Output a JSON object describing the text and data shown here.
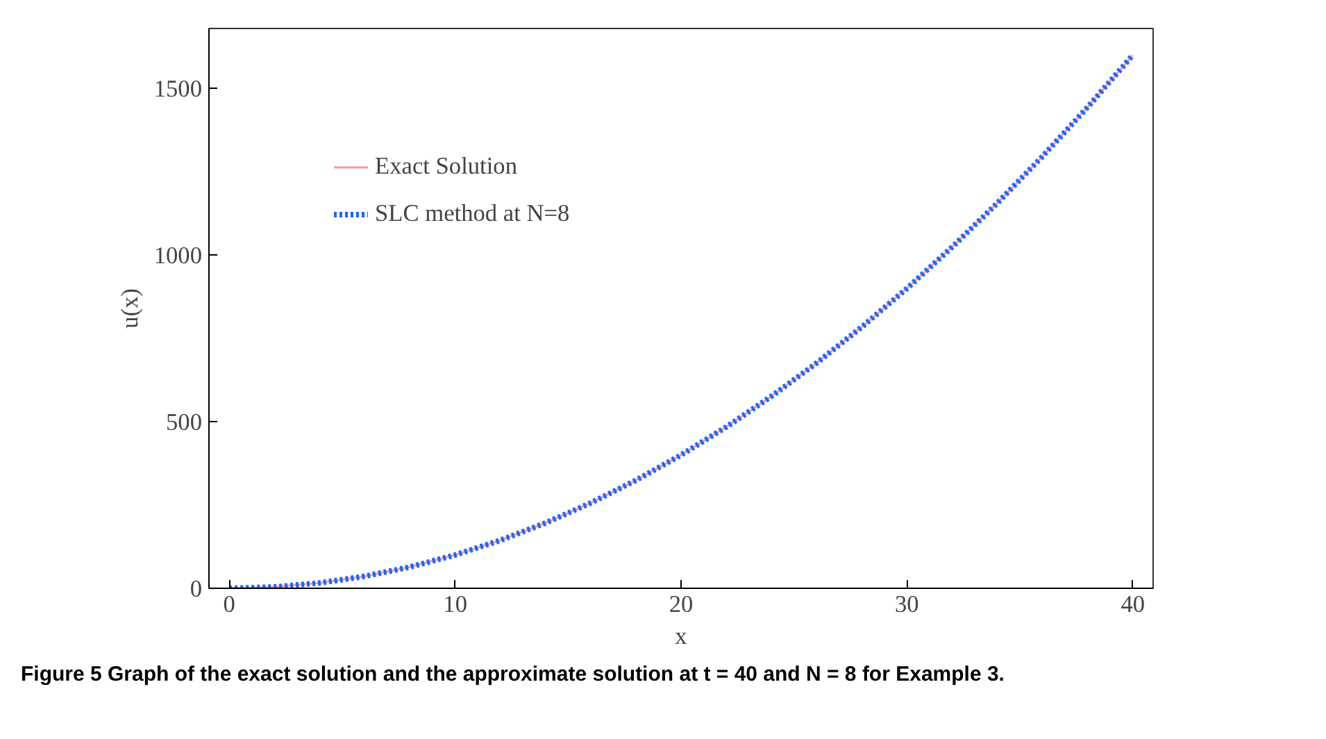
{
  "chart_data": {
    "type": "line",
    "xlabel": "x",
    "ylabel": "u(x)",
    "x": [
      0,
      2,
      4,
      6,
      8,
      10,
      12,
      14,
      16,
      18,
      20,
      22,
      24,
      26,
      28,
      30,
      32,
      34,
      36,
      38,
      40
    ],
    "series": [
      {
        "name": "Exact Solution",
        "color": "#ff9999",
        "line_style": "solid",
        "values": [
          0,
          4,
          16,
          36,
          64,
          100,
          144,
          196,
          256,
          324,
          400,
          484,
          576,
          676,
          784,
          900,
          1024,
          1156,
          1296,
          1444,
          1600
        ]
      },
      {
        "name": "SLC method at N=8",
        "color": "#1a66ff",
        "line_style": "dotted",
        "values": [
          0,
          4,
          16,
          36,
          64,
          100,
          144,
          196,
          256,
          324,
          400,
          484,
          576,
          676,
          784,
          900,
          1024,
          1156,
          1296,
          1444,
          1600
        ]
      }
    ],
    "xlim": [
      -0.9,
      40.9
    ],
    "ylim": [
      0,
      1680
    ],
    "xticks": [
      0,
      10,
      20,
      30,
      40
    ],
    "yticks": [
      0,
      500,
      1000,
      1500
    ],
    "grid": false,
    "legend": "top left",
    "marker": "none",
    "annotations": [
      "Figure 5  Graph of the exact solution and the approximate solution at t = 40 and N = 8 for Example 3."
    ]
  }
}
